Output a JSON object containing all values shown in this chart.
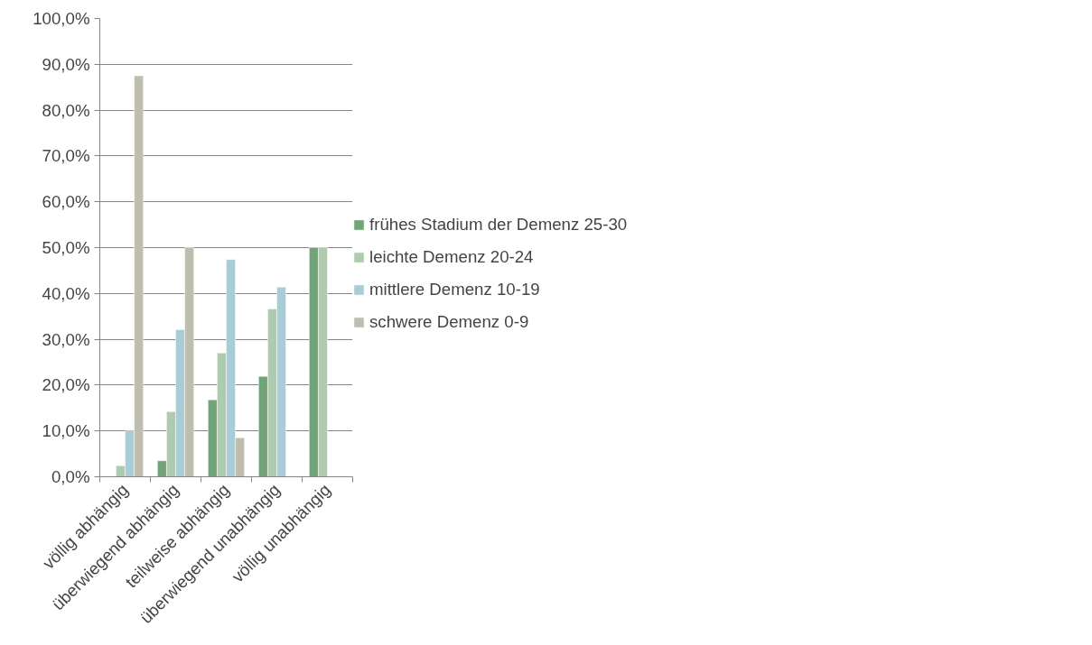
{
  "chart_data": {
    "type": "bar",
    "categories": [
      "völlig abhängig",
      "überwiegend abhängig",
      "teilweise abhängig",
      "überwiegend unabhängig",
      "völlig unabhängig"
    ],
    "series": [
      {
        "name": "frühes Stadium der Demenz 25-30",
        "color": "#71a476",
        "values": [
          null,
          3.5,
          16.8,
          21.9,
          50.0
        ]
      },
      {
        "name": "leichte Demenz 20-24",
        "color": "#adcbad",
        "values": [
          2.4,
          14.2,
          27.0,
          36.6,
          50.0
        ]
      },
      {
        "name": "mittlere Demenz 10-19",
        "color": "#a8cdd7",
        "values": [
          10.0,
          32.1,
          47.4,
          41.4,
          null
        ]
      },
      {
        "name": "schwere Demenz 0-9",
        "color": "#bfbdae",
        "values": [
          87.5,
          50.0,
          8.5,
          null,
          null
        ]
      }
    ],
    "ylim": [
      0,
      100
    ],
    "yticks": [
      {
        "value": 0,
        "label": "0,0%"
      },
      {
        "value": 10,
        "label": "10,0%"
      },
      {
        "value": 20,
        "label": "20,0%"
      },
      {
        "value": 30,
        "label": "30,0%"
      },
      {
        "value": 40,
        "label": "40,0%"
      },
      {
        "value": 50,
        "label": "50,0%"
      },
      {
        "value": 60,
        "label": "60,0%"
      },
      {
        "value": 70,
        "label": "70,0%"
      },
      {
        "value": 80,
        "label": "80,0%"
      },
      {
        "value": 90,
        "label": "90,0%"
      },
      {
        "value": 100,
        "label": "100,0%"
      }
    ],
    "grid": "y",
    "legend": "right"
  }
}
